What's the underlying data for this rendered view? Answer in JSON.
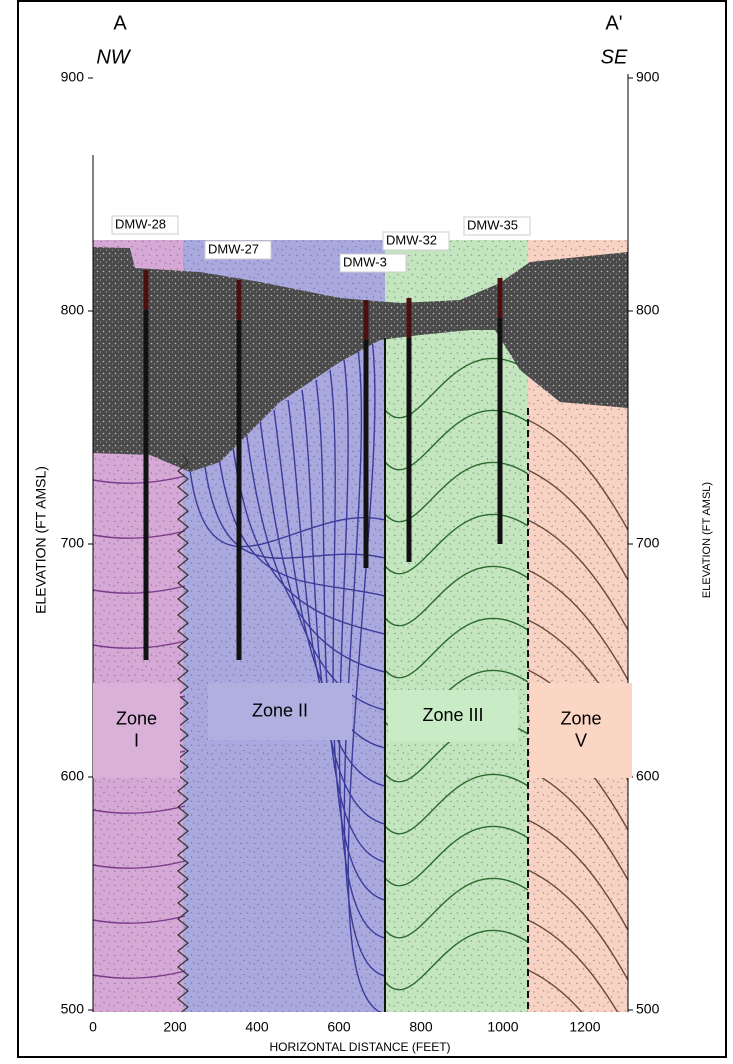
{
  "header": {
    "left": {
      "label": "A",
      "direction": "NW"
    },
    "right": {
      "label": "A'",
      "direction": "SE"
    }
  },
  "axes": {
    "left_title": "ELEVATION (FT AMSL)",
    "right_title": "ELEVATION (FT AMSL)",
    "bottom_title": "HORIZONTAL DISTANCE (FEET)",
    "y_ticks": [
      900,
      800,
      700,
      600,
      500
    ],
    "x_ticks": [
      0,
      200,
      400,
      600,
      800,
      1000,
      1200
    ]
  },
  "wells": [
    {
      "label": "DMW-28"
    },
    {
      "label": "DMW-27"
    },
    {
      "label": "DMW-3"
    },
    {
      "label": "DMW-32"
    },
    {
      "label": "DMW-35"
    }
  ],
  "zones": [
    {
      "lines": [
        "Zone",
        "I"
      ]
    },
    {
      "lines": [
        "Zone II"
      ]
    },
    {
      "lines": [
        "Zone III"
      ]
    },
    {
      "lines": [
        "Zone",
        "V"
      ]
    }
  ]
}
